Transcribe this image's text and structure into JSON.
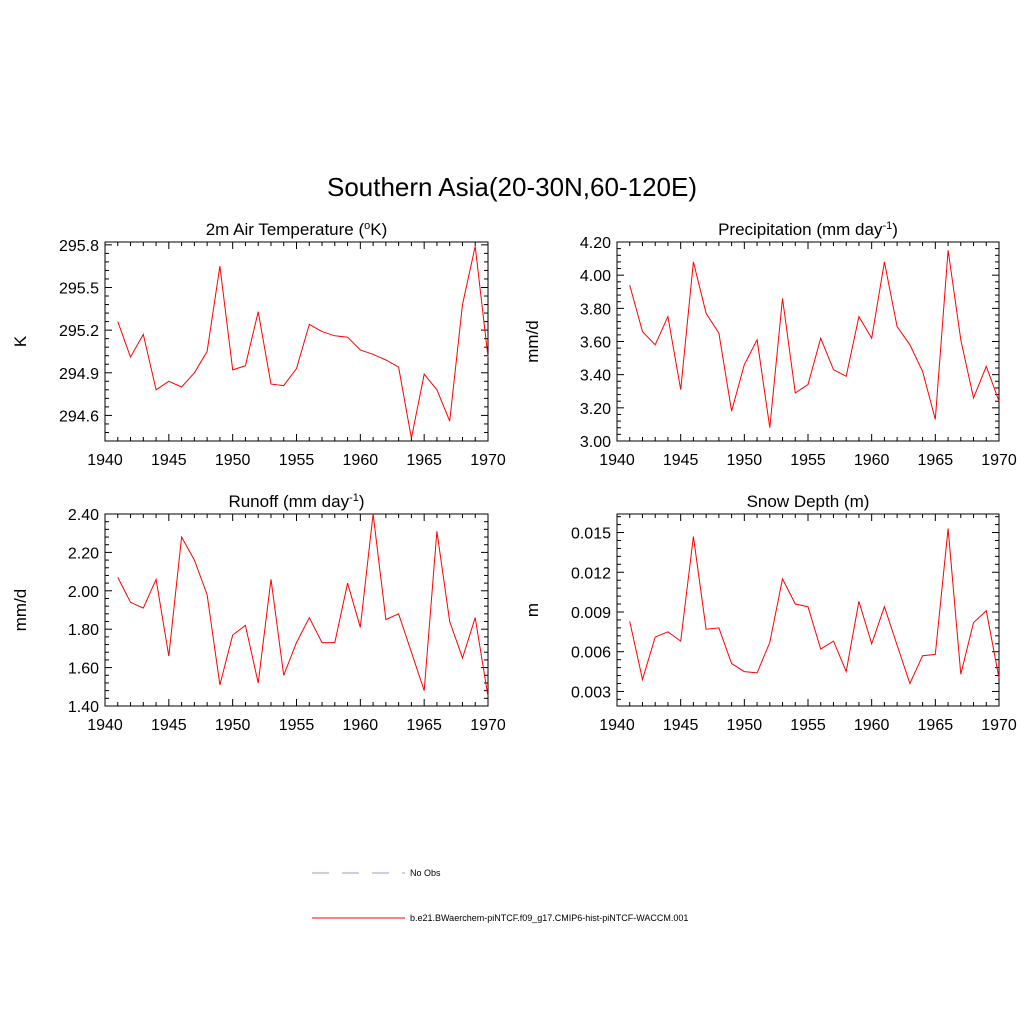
{
  "figure": {
    "title": "Southern Asia(20-30N,60-120E)"
  },
  "legend": {
    "entries": [
      {
        "label": "No Obs",
        "color": "#9999dd",
        "style": "dashed"
      },
      {
        "label": "b.e21.BWaerchem-piNTCF.f09_g17.CMIP6-hist-piNTCF-WACCM.001",
        "color": "#ff0000",
        "style": "solid"
      }
    ]
  },
  "chart_data": [
    {
      "type": "line",
      "title": "2m Air Temperature (",
      "title_sup": "o",
      "title_end": "K)",
      "ylabel": "K",
      "xlim": [
        1940,
        1970
      ],
      "ylim": [
        294.42,
        295.82
      ],
      "xticks": [
        1940,
        1945,
        1950,
        1955,
        1960,
        1965,
        1970
      ],
      "yticks": [
        294.6,
        294.9,
        295.2,
        295.5,
        295.8
      ],
      "ytick_labels": [
        "294.6",
        "294.9",
        "295.2",
        "295.5",
        "295.8"
      ],
      "series_color": "#ff0000",
      "x": [
        1941,
        1942,
        1943,
        1944,
        1945,
        1946,
        1947,
        1948,
        1949,
        1950,
        1951,
        1952,
        1953,
        1954,
        1955,
        1956,
        1957,
        1958,
        1959,
        1960,
        1961,
        1962,
        1963,
        1964,
        1965,
        1966,
        1967,
        1968,
        1969,
        1970
      ],
      "y": [
        295.26,
        295.01,
        295.17,
        294.78,
        294.84,
        294.8,
        294.9,
        295.05,
        295.65,
        294.92,
        294.95,
        295.33,
        294.82,
        294.81,
        294.93,
        295.24,
        295.19,
        295.16,
        295.15,
        295.06,
        295.03,
        294.99,
        294.94,
        294.44,
        294.89,
        294.78,
        294.56,
        295.38,
        295.79,
        295.01
      ]
    },
    {
      "type": "line",
      "title": "Precipitation (mm day",
      "title_sup": "-1",
      "title_end": ")",
      "ylabel": "mm/d",
      "xlim": [
        1940,
        1970
      ],
      "ylim": [
        3.0,
        4.2
      ],
      "xticks": [
        1940,
        1945,
        1950,
        1955,
        1960,
        1965,
        1970
      ],
      "yticks": [
        3.0,
        3.2,
        3.4,
        3.6,
        3.8,
        4.0,
        4.2
      ],
      "ytick_labels": [
        "3.00",
        "3.20",
        "3.40",
        "3.60",
        "3.80",
        "4.00",
        "4.20"
      ],
      "series_color": "#ff0000",
      "x": [
        1941,
        1942,
        1943,
        1944,
        1945,
        1946,
        1947,
        1948,
        1949,
        1950,
        1951,
        1952,
        1953,
        1954,
        1955,
        1956,
        1957,
        1958,
        1959,
        1960,
        1961,
        1962,
        1963,
        1964,
        1965,
        1966,
        1967,
        1968,
        1969,
        1970
      ],
      "y": [
        3.94,
        3.66,
        3.58,
        3.75,
        3.31,
        4.08,
        3.77,
        3.65,
        3.18,
        3.46,
        3.61,
        3.08,
        3.86,
        3.29,
        3.34,
        3.62,
        3.43,
        3.39,
        3.75,
        3.62,
        4.08,
        3.69,
        3.58,
        3.42,
        3.13,
        4.15,
        3.61,
        3.26,
        3.45,
        3.24
      ]
    },
    {
      "type": "line",
      "title": "Runoff (mm day",
      "title_sup": "-1",
      "title_end": ")",
      "ylabel": "mm/d",
      "xlim": [
        1940,
        1970
      ],
      "ylim": [
        1.4,
        2.4
      ],
      "xticks": [
        1940,
        1945,
        1950,
        1955,
        1960,
        1965,
        1970
      ],
      "yticks": [
        1.4,
        1.6,
        1.8,
        2.0,
        2.2,
        2.4
      ],
      "ytick_labels": [
        "1.40",
        "1.60",
        "1.80",
        "2.00",
        "2.20",
        "2.40"
      ],
      "series_color": "#ff0000",
      "x": [
        1941,
        1942,
        1943,
        1944,
        1945,
        1946,
        1947,
        1948,
        1949,
        1950,
        1951,
        1952,
        1953,
        1954,
        1955,
        1956,
        1957,
        1958,
        1959,
        1960,
        1961,
        1962,
        1963,
        1964,
        1965,
        1966,
        1967,
        1968,
        1969,
        1970
      ],
      "y": [
        2.07,
        1.94,
        1.91,
        2.06,
        1.66,
        2.28,
        2.16,
        1.98,
        1.51,
        1.77,
        1.82,
        1.52,
        2.06,
        1.56,
        1.73,
        1.86,
        1.73,
        1.73,
        2.04,
        1.81,
        2.4,
        1.85,
        1.88,
        1.68,
        1.48,
        2.31,
        1.84,
        1.65,
        1.86,
        1.45
      ]
    },
    {
      "type": "line",
      "title": "Snow Depth (m)",
      "title_sup": "",
      "title_end": "",
      "ylabel": "m",
      "xlim": [
        1940,
        1970
      ],
      "ylim": [
        0.0019,
        0.0164
      ],
      "xticks": [
        1940,
        1945,
        1950,
        1955,
        1960,
        1965,
        1970
      ],
      "yticks": [
        0.003,
        0.006,
        0.009,
        0.012,
        0.015
      ],
      "ytick_labels": [
        "0.003",
        "0.006",
        "0.009",
        "0.012",
        "0.015"
      ],
      "series_color": "#ff0000",
      "x": [
        1941,
        1942,
        1943,
        1944,
        1945,
        1946,
        1947,
        1948,
        1949,
        1950,
        1951,
        1952,
        1953,
        1954,
        1955,
        1956,
        1957,
        1958,
        1959,
        1960,
        1961,
        1962,
        1963,
        1964,
        1965,
        1966,
        1967,
        1968,
        1969,
        1970
      ],
      "y": [
        0.0083,
        0.0039,
        0.0071,
        0.0075,
        0.0068,
        0.0147,
        0.0077,
        0.0078,
        0.0051,
        0.0045,
        0.0044,
        0.0067,
        0.0115,
        0.0096,
        0.0094,
        0.0062,
        0.0068,
        0.0045,
        0.0098,
        0.0066,
        0.0094,
        0.0065,
        0.0036,
        0.0057,
        0.0058,
        0.0153,
        0.0043,
        0.0082,
        0.0091,
        0.004
      ]
    }
  ]
}
